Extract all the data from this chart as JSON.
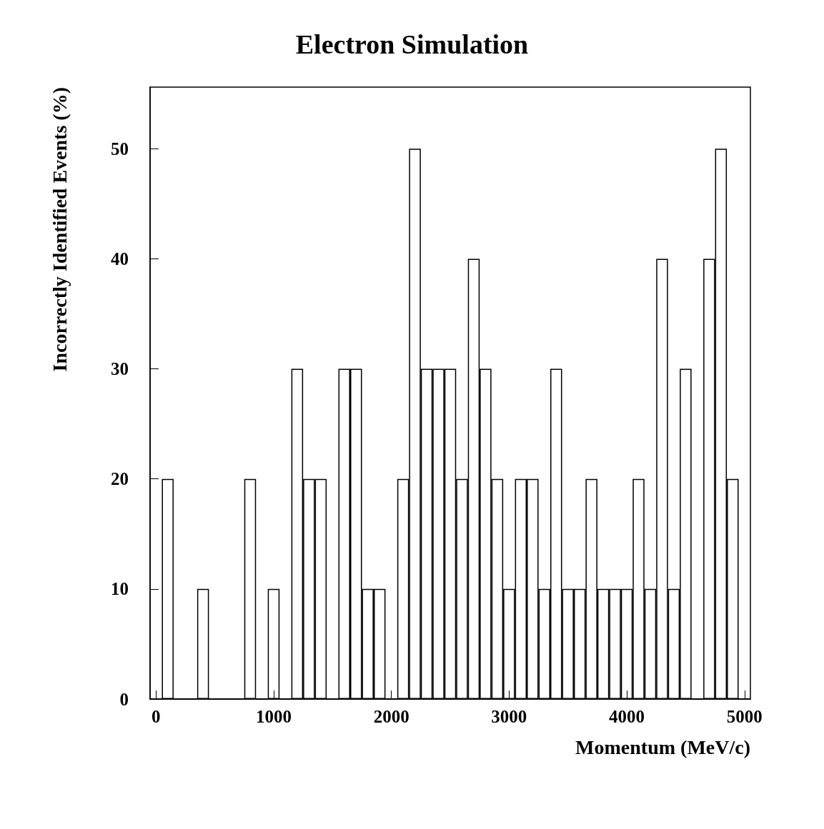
{
  "chart_data": {
    "type": "histogram",
    "title": "Electron Simulation",
    "xlabel": "Momentum (MeV/c)",
    "ylabel": "Incorrectly Identified Events (%)",
    "bins": [
      -50,
      50,
      150,
      250,
      350,
      450,
      550,
      650,
      750,
      850,
      950,
      1050,
      1150,
      1250,
      1350,
      1450,
      1550,
      1650,
      1750,
      1850,
      1950,
      2050,
      2150,
      2250,
      2350,
      2450,
      2550,
      2650,
      2750,
      2850,
      2950,
      3050,
      3150,
      3250,
      3350,
      3450,
      3550,
      3650,
      3750,
      3850,
      3950,
      4050,
      4150,
      4250,
      4350,
      4450,
      4550,
      4650,
      4750,
      4850,
      4950,
      5050
    ],
    "values": [
      0,
      20,
      0,
      0,
      10,
      0,
      0,
      0,
      20,
      0,
      10,
      0,
      30,
      20,
      20,
      0,
      30,
      30,
      10,
      10,
      0,
      20,
      50,
      30,
      30,
      30,
      20,
      40,
      30,
      20,
      10,
      20,
      20,
      10,
      30,
      10,
      10,
      20,
      10,
      10,
      10,
      20,
      10,
      40,
      10,
      30,
      0,
      40,
      50,
      20,
      0
    ],
    "color": "#000000",
    "xlim": [
      -50,
      5050
    ],
    "xticks": [
      0,
      1000,
      2000,
      3000,
      4000,
      5000
    ],
    "ylim": [
      0,
      55.6
    ],
    "yticks": [
      0,
      10,
      20,
      30,
      40,
      50
    ],
    "grid": false
  }
}
